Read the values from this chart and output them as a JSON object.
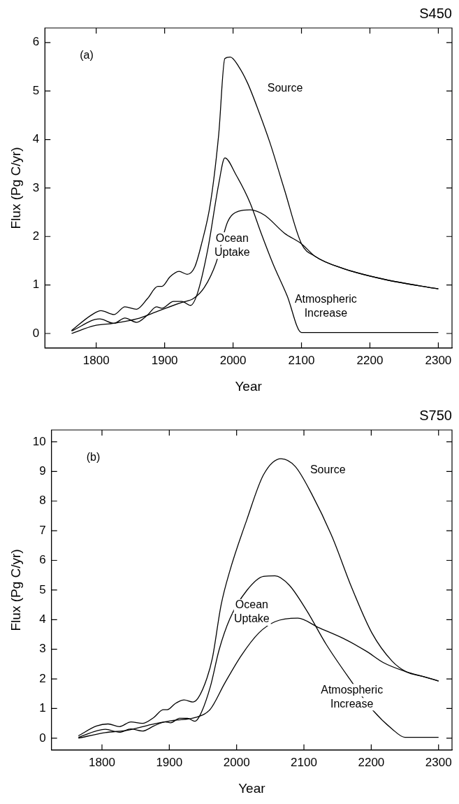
{
  "chart_data": [
    {
      "type": "line",
      "title": "S450",
      "xlabel": "Year",
      "ylabel": "Flux (Pg C/yr)",
      "xlim": [
        1725,
        2320
      ],
      "xticks": [
        1800,
        1900,
        2000,
        2100,
        2200,
        2300
      ],
      "ylim": [
        -0.3,
        6.3
      ],
      "yticks": [
        0,
        1,
        2,
        3,
        4,
        5,
        6
      ],
      "grid": false,
      "legend": false,
      "marker": "none",
      "line_style": "solid",
      "annotations": [
        "(a)"
      ],
      "series": [
        {
          "name": "Source",
          "color": "#000000",
          "x": [
            1764,
            1793,
            1807,
            1826,
            1842,
            1859,
            1875,
            1890,
            1896,
            1908,
            1921,
            1933,
            1944,
            1954,
            1967,
            1979,
            1988,
            1996,
            2008,
            2021,
            2037,
            2054,
            2075,
            2100,
            2120,
            2161,
            2223,
            2300
          ],
          "values": [
            0.06,
            0.38,
            0.47,
            0.39,
            0.55,
            0.5,
            0.72,
            0.97,
            0.97,
            1.17,
            1.28,
            1.22,
            1.37,
            1.85,
            2.69,
            4.1,
            5.67,
            5.7,
            5.51,
            5.17,
            4.6,
            3.93,
            2.97,
            1.85,
            1.59,
            1.34,
            1.11,
            0.92
          ]
        },
        {
          "name": "Atmospheric Increase",
          "color": "#000000",
          "x": [
            1764,
            1805,
            1826,
            1842,
            1859,
            1875,
            1888,
            1896,
            1913,
            1925,
            1938,
            1948,
            1963,
            1979,
            1988,
            2004,
            2025,
            2041,
            2058,
            2079,
            2100,
            2300
          ],
          "values": [
            0.05,
            0.3,
            0.21,
            0.32,
            0.23,
            0.38,
            0.55,
            0.52,
            0.66,
            0.66,
            0.58,
            0.83,
            1.73,
            3.08,
            3.62,
            3.28,
            2.69,
            2.07,
            1.45,
            0.78,
            0.02,
            0.02
          ]
        },
        {
          "name": "Ocean Uptake",
          "color": "#000000",
          "x": [
            1764,
            1797,
            1826,
            1859,
            1892,
            1925,
            1942,
            1958,
            1975,
            1992,
            2008,
            2025,
            2046,
            2075,
            2100,
            2120,
            2161,
            2223,
            2300
          ],
          "values": [
            0,
            0.16,
            0.21,
            0.3,
            0.47,
            0.64,
            0.72,
            0.95,
            1.45,
            2.3,
            2.52,
            2.55,
            2.44,
            2.07,
            1.85,
            1.59,
            1.34,
            1.11,
            0.92
          ]
        }
      ]
    },
    {
      "type": "line",
      "title": "S750",
      "xlabel": "Year",
      "ylabel": "Flux (Pg C/yr)",
      "xlim": [
        1725,
        2320
      ],
      "xticks": [
        1800,
        1900,
        2000,
        2100,
        2200,
        2300
      ],
      "ylim": [
        -0.4,
        10.4
      ],
      "yticks": [
        0,
        1,
        2,
        3,
        4,
        5,
        6,
        7,
        8,
        9,
        10
      ],
      "grid": false,
      "legend": false,
      "marker": "none",
      "line_style": "solid",
      "annotations": [
        "(b)"
      ],
      "series": [
        {
          "name": "Source",
          "color": "#000000",
          "x": [
            1765,
            1792,
            1809,
            1826,
            1843,
            1860,
            1877,
            1891,
            1897,
            1909,
            1922,
            1935,
            1943,
            1956,
            1964,
            1977,
            1990,
            2015,
            2040,
            2066,
            2087,
            2112,
            2142,
            2171,
            2201,
            2231,
            2252,
            2277,
            2300
          ],
          "values": [
            0.08,
            0.41,
            0.48,
            0.39,
            0.55,
            0.5,
            0.7,
            0.96,
            0.96,
            1.17,
            1.29,
            1.22,
            1.36,
            2.03,
            2.7,
            4.5,
            5.65,
            7.36,
            8.89,
            9.43,
            9.17,
            8.22,
            6.79,
            5.08,
            3.55,
            2.6,
            2.24,
            2.08,
            1.93
          ]
        },
        {
          "name": "Atmospheric Increase",
          "color": "#000000",
          "x": [
            1765,
            1805,
            1826,
            1843,
            1860,
            1877,
            1894,
            1902,
            1915,
            1927,
            1938,
            1946,
            1961,
            1974,
            1990,
            2015,
            2040,
            2057,
            2078,
            2104,
            2133,
            2167,
            2201,
            2231,
            2250,
            2300
          ],
          "values": [
            0.03,
            0.3,
            0.2,
            0.31,
            0.24,
            0.41,
            0.55,
            0.52,
            0.67,
            0.67,
            0.57,
            0.79,
            1.74,
            2.98,
            4.03,
            4.98,
            5.46,
            5.48,
            5.17,
            4.31,
            3.17,
            2.03,
            0.98,
            0.31,
            0.03,
            0.03
          ]
        },
        {
          "name": "Ocean Uptake",
          "color": "#000000",
          "x": [
            1765,
            1805,
            1839,
            1873,
            1906,
            1939,
            1961,
            1982,
            2007,
            2033,
            2057,
            2091,
            2121,
            2159,
            2193,
            2218,
            2252,
            2277,
            2300
          ],
          "values": [
            0,
            0.19,
            0.27,
            0.46,
            0.6,
            0.7,
            0.98,
            1.84,
            2.79,
            3.55,
            3.93,
            4.05,
            3.74,
            3.36,
            2.93,
            2.55,
            2.24,
            2.08,
            1.93
          ]
        }
      ]
    }
  ]
}
